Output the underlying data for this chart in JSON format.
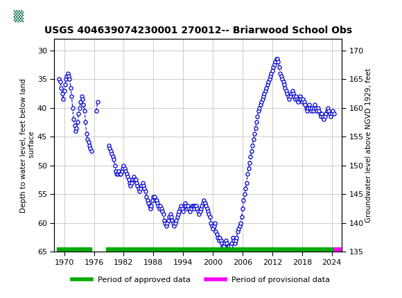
{
  "title": "USGS 404639074230001 270012-- Briarwood School Obs",
  "ylabel_left": "Depth to water level, feet below land\n surface",
  "ylabel_right": "Groundwater level above NGVD 1929, feet",
  "ylim_left": [
    65,
    28
  ],
  "ylim_right": [
    135,
    172
  ],
  "xlim": [
    1968,
    2026
  ],
  "xticks": [
    1970,
    1976,
    1982,
    1988,
    1994,
    2000,
    2006,
    2012,
    2018,
    2024
  ],
  "yticks_left": [
    30,
    35,
    40,
    45,
    50,
    55,
    60,
    65
  ],
  "yticks_right": [
    170,
    165,
    160,
    155,
    150,
    145,
    140,
    135
  ],
  "bg_color": "#ffffff",
  "grid_color": "#cccccc",
  "data_color": "#0000cc",
  "header_color": "#006644",
  "legend_approved_color": "#00aa00",
  "legend_provisional_color": "#ff00ff",
  "approved_bar_ranges": [
    [
      1968.5,
      1975.5
    ],
    [
      1978.5,
      2024.5
    ]
  ],
  "provisional_bar_ranges": [
    [
      2024.5,
      2025.8
    ]
  ],
  "data_points": [
    [
      1969.0,
      35.0
    ],
    [
      1969.2,
      35.5
    ],
    [
      1969.4,
      36.5
    ],
    [
      1969.6,
      37.5
    ],
    [
      1969.8,
      38.5
    ],
    [
      1970.0,
      37.0
    ],
    [
      1970.2,
      36.0
    ],
    [
      1970.4,
      35.0
    ],
    [
      1970.5,
      34.5
    ],
    [
      1970.7,
      34.0
    ],
    [
      1970.9,
      34.5
    ],
    [
      1971.1,
      35.0
    ],
    [
      1971.3,
      36.5
    ],
    [
      1971.5,
      38.0
    ],
    [
      1971.7,
      40.0
    ],
    [
      1971.9,
      42.0
    ],
    [
      1972.1,
      43.0
    ],
    [
      1972.3,
      44.0
    ],
    [
      1972.5,
      43.5
    ],
    [
      1972.7,
      42.5
    ],
    [
      1972.9,
      41.0
    ],
    [
      1973.1,
      40.0
    ],
    [
      1973.3,
      39.0
    ],
    [
      1973.5,
      38.0
    ],
    [
      1973.7,
      38.5
    ],
    [
      1973.9,
      39.5
    ],
    [
      1974.1,
      40.5
    ],
    [
      1974.3,
      42.5
    ],
    [
      1974.5,
      44.5
    ],
    [
      1974.7,
      45.5
    ],
    [
      1974.9,
      46.0
    ],
    [
      1975.1,
      46.5
    ],
    [
      1975.3,
      47.0
    ],
    [
      1975.5,
      47.5
    ],
    [
      1976.5,
      40.5
    ],
    [
      1976.7,
      39.0
    ],
    [
      1979.0,
      46.5
    ],
    [
      1979.2,
      47.0
    ],
    [
      1979.4,
      47.5
    ],
    [
      1979.6,
      48.0
    ],
    [
      1979.8,
      48.5
    ],
    [
      1980.0,
      49.0
    ],
    [
      1980.2,
      50.0
    ],
    [
      1980.4,
      51.0
    ],
    [
      1980.6,
      51.5
    ],
    [
      1980.8,
      51.5
    ],
    [
      1981.0,
      51.0
    ],
    [
      1981.2,
      51.5
    ],
    [
      1981.4,
      51.5
    ],
    [
      1981.6,
      51.0
    ],
    [
      1981.8,
      50.5
    ],
    [
      1982.0,
      50.0
    ],
    [
      1982.2,
      50.5
    ],
    [
      1982.4,
      51.0
    ],
    [
      1982.6,
      51.5
    ],
    [
      1982.8,
      52.0
    ],
    [
      1983.0,
      52.5
    ],
    [
      1983.2,
      53.0
    ],
    [
      1983.4,
      53.5
    ],
    [
      1983.6,
      53.0
    ],
    [
      1983.8,
      52.5
    ],
    [
      1984.0,
      52.0
    ],
    [
      1984.2,
      52.5
    ],
    [
      1984.4,
      52.5
    ],
    [
      1984.6,
      53.0
    ],
    [
      1984.8,
      53.5
    ],
    [
      1985.0,
      54.0
    ],
    [
      1985.2,
      54.5
    ],
    [
      1985.4,
      54.0
    ],
    [
      1985.6,
      53.5
    ],
    [
      1985.8,
      53.0
    ],
    [
      1986.0,
      53.5
    ],
    [
      1986.2,
      54.0
    ],
    [
      1986.4,
      54.5
    ],
    [
      1986.6,
      55.5
    ],
    [
      1986.8,
      56.0
    ],
    [
      1987.0,
      56.5
    ],
    [
      1987.2,
      57.0
    ],
    [
      1987.4,
      57.5
    ],
    [
      1987.6,
      57.0
    ],
    [
      1987.8,
      56.0
    ],
    [
      1988.0,
      55.5
    ],
    [
      1988.2,
      55.5
    ],
    [
      1988.4,
      56.0
    ],
    [
      1988.6,
      56.0
    ],
    [
      1988.8,
      56.5
    ],
    [
      1989.0,
      57.0
    ],
    [
      1989.2,
      57.5
    ],
    [
      1989.4,
      57.0
    ],
    [
      1989.6,
      57.5
    ],
    [
      1989.8,
      58.0
    ],
    [
      1990.0,
      58.5
    ],
    [
      1990.2,
      59.5
    ],
    [
      1990.4,
      60.0
    ],
    [
      1990.6,
      60.5
    ],
    [
      1990.8,
      60.0
    ],
    [
      1991.0,
      59.5
    ],
    [
      1991.2,
      59.0
    ],
    [
      1991.4,
      58.5
    ],
    [
      1991.6,
      59.0
    ],
    [
      1991.8,
      59.5
    ],
    [
      1992.0,
      60.0
    ],
    [
      1992.2,
      60.5
    ],
    [
      1992.4,
      60.0
    ],
    [
      1992.6,
      59.5
    ],
    [
      1992.8,
      59.0
    ],
    [
      1993.0,
      58.5
    ],
    [
      1993.2,
      58.0
    ],
    [
      1993.4,
      57.5
    ],
    [
      1993.6,
      57.0
    ],
    [
      1993.8,
      57.5
    ],
    [
      1994.0,
      58.0
    ],
    [
      1994.2,
      57.0
    ],
    [
      1994.4,
      56.5
    ],
    [
      1994.6,
      57.0
    ],
    [
      1994.8,
      57.5
    ],
    [
      1995.0,
      57.0
    ],
    [
      1995.2,
      57.5
    ],
    [
      1995.4,
      58.0
    ],
    [
      1995.6,
      57.5
    ],
    [
      1995.8,
      57.0
    ],
    [
      1996.0,
      57.0
    ],
    [
      1996.2,
      57.5
    ],
    [
      1996.4,
      57.0
    ],
    [
      1996.6,
      57.0
    ],
    [
      1996.8,
      57.5
    ],
    [
      1997.0,
      58.0
    ],
    [
      1997.2,
      58.5
    ],
    [
      1997.4,
      58.0
    ],
    [
      1997.6,
      57.5
    ],
    [
      1997.8,
      57.0
    ],
    [
      1998.0,
      56.5
    ],
    [
      1998.2,
      56.0
    ],
    [
      1998.4,
      56.5
    ],
    [
      1998.6,
      57.0
    ],
    [
      1998.8,
      57.5
    ],
    [
      1999.0,
      58.0
    ],
    [
      1999.2,
      58.5
    ],
    [
      1999.4,
      59.0
    ],
    [
      1999.6,
      60.0
    ],
    [
      1999.8,
      60.5
    ],
    [
      2000.0,
      61.0
    ],
    [
      2000.2,
      60.5
    ],
    [
      2000.4,
      60.0
    ],
    [
      2000.6,
      61.5
    ],
    [
      2000.8,
      62.0
    ],
    [
      2001.0,
      62.5
    ],
    [
      2001.2,
      63.0
    ],
    [
      2001.4,
      62.5
    ],
    [
      2001.6,
      63.0
    ],
    [
      2001.8,
      63.5
    ],
    [
      2002.0,
      64.0
    ],
    [
      2002.2,
      64.0
    ],
    [
      2002.4,
      63.5
    ],
    [
      2002.6,
      63.0
    ],
    [
      2002.8,
      63.5
    ],
    [
      2003.0,
      64.0
    ],
    [
      2003.2,
      64.0
    ],
    [
      2003.4,
      64.5
    ],
    [
      2003.6,
      64.0
    ],
    [
      2003.8,
      63.5
    ],
    [
      2004.0,
      62.5
    ],
    [
      2004.2,
      63.0
    ],
    [
      2004.4,
      63.5
    ],
    [
      2004.6,
      63.0
    ],
    [
      2004.8,
      62.5
    ],
    [
      2005.0,
      61.5
    ],
    [
      2005.2,
      61.0
    ],
    [
      2005.4,
      60.5
    ],
    [
      2005.6,
      60.0
    ],
    [
      2005.8,
      59.0
    ],
    [
      2006.0,
      57.5
    ],
    [
      2006.2,
      56.0
    ],
    [
      2006.4,
      55.0
    ],
    [
      2006.6,
      54.0
    ],
    [
      2006.8,
      53.0
    ],
    [
      2007.0,
      51.5
    ],
    [
      2007.2,
      50.5
    ],
    [
      2007.4,
      49.5
    ],
    [
      2007.6,
      48.5
    ],
    [
      2007.8,
      47.5
    ],
    [
      2008.0,
      46.5
    ],
    [
      2008.2,
      45.5
    ],
    [
      2008.4,
      44.5
    ],
    [
      2008.6,
      43.5
    ],
    [
      2008.8,
      42.5
    ],
    [
      2009.0,
      41.5
    ],
    [
      2009.2,
      40.5
    ],
    [
      2009.4,
      40.0
    ],
    [
      2009.6,
      39.5
    ],
    [
      2009.8,
      39.0
    ],
    [
      2010.0,
      38.5
    ],
    [
      2010.2,
      38.0
    ],
    [
      2010.4,
      37.5
    ],
    [
      2010.6,
      37.0
    ],
    [
      2010.8,
      36.5
    ],
    [
      2011.0,
      36.0
    ],
    [
      2011.2,
      35.5
    ],
    [
      2011.4,
      35.0
    ],
    [
      2011.6,
      34.5
    ],
    [
      2011.8,
      34.0
    ],
    [
      2012.0,
      33.5
    ],
    [
      2012.2,
      33.0
    ],
    [
      2012.4,
      32.5
    ],
    [
      2012.6,
      32.0
    ],
    [
      2012.8,
      31.5
    ],
    [
      2013.0,
      31.5
    ],
    [
      2013.2,
      32.0
    ],
    [
      2013.4,
      33.0
    ],
    [
      2013.6,
      34.0
    ],
    [
      2013.8,
      34.5
    ],
    [
      2014.0,
      35.0
    ],
    [
      2014.2,
      35.5
    ],
    [
      2014.4,
      36.0
    ],
    [
      2014.6,
      36.5
    ],
    [
      2014.8,
      37.0
    ],
    [
      2015.0,
      37.5
    ],
    [
      2015.2,
      38.0
    ],
    [
      2015.4,
      38.5
    ],
    [
      2015.6,
      38.0
    ],
    [
      2015.8,
      37.5
    ],
    [
      2016.0,
      37.0
    ],
    [
      2016.2,
      37.5
    ],
    [
      2016.4,
      38.0
    ],
    [
      2016.6,
      38.5
    ],
    [
      2016.8,
      38.0
    ],
    [
      2017.0,
      38.5
    ],
    [
      2017.2,
      39.0
    ],
    [
      2017.4,
      38.5
    ],
    [
      2017.6,
      38.0
    ],
    [
      2017.8,
      38.5
    ],
    [
      2018.0,
      39.0
    ],
    [
      2018.2,
      38.5
    ],
    [
      2018.4,
      39.0
    ],
    [
      2018.6,
      39.5
    ],
    [
      2018.8,
      40.0
    ],
    [
      2019.0,
      40.5
    ],
    [
      2019.2,
      40.0
    ],
    [
      2019.4,
      39.5
    ],
    [
      2019.6,
      40.0
    ],
    [
      2019.8,
      40.5
    ],
    [
      2020.0,
      40.0
    ],
    [
      2020.2,
      40.5
    ],
    [
      2020.4,
      40.0
    ],
    [
      2020.6,
      39.5
    ],
    [
      2020.8,
      40.0
    ],
    [
      2021.0,
      40.5
    ],
    [
      2021.2,
      40.0
    ],
    [
      2021.4,
      40.5
    ],
    [
      2021.6,
      41.0
    ],
    [
      2021.8,
      41.5
    ],
    [
      2022.0,
      41.0
    ],
    [
      2022.2,
      41.5
    ],
    [
      2022.4,
      42.0
    ],
    [
      2022.6,
      41.5
    ],
    [
      2022.8,
      41.0
    ],
    [
      2023.0,
      40.5
    ],
    [
      2023.2,
      40.0
    ],
    [
      2023.4,
      40.5
    ],
    [
      2023.6,
      41.0
    ],
    [
      2023.8,
      41.5
    ],
    [
      2024.0,
      41.0
    ],
    [
      2024.2,
      40.5
    ],
    [
      2024.4,
      41.0
    ]
  ]
}
